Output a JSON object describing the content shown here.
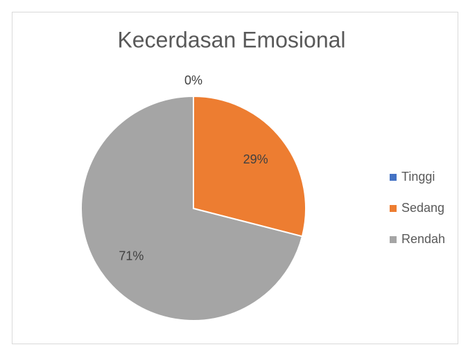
{
  "chart_data": {
    "type": "pie",
    "title": "Kecerdasan Emosional",
    "categories": [
      "Tinggi",
      "Sedang",
      "Rendah"
    ],
    "values": [
      0,
      29,
      71
    ],
    "value_labels": [
      "0%",
      "29%",
      "71%"
    ],
    "colors": [
      "#4472c4",
      "#ed7d31",
      "#a5a5a5"
    ],
    "legend": "right"
  }
}
